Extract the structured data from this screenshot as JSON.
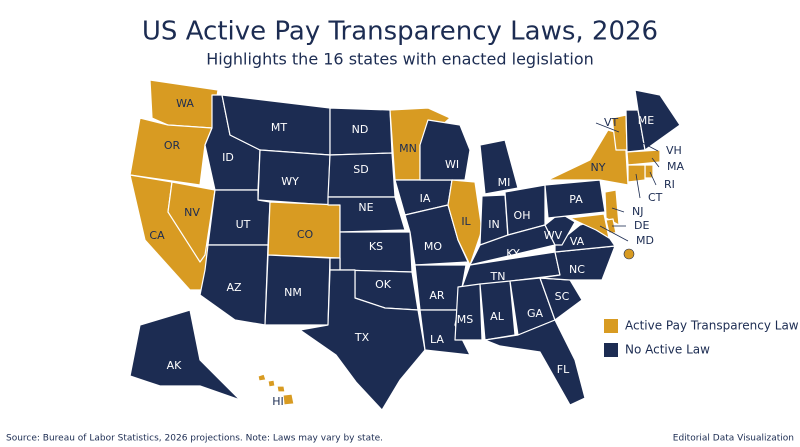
{
  "title": "US Active Pay Transparency Laws, 2026",
  "subtitle": "Highlights the 16 states with enacted legislation",
  "legend": [
    {
      "label": "Active Pay Transparency Law",
      "color": "#d89b22"
    },
    {
      "label": "No Active Law",
      "color": "#1c2c52"
    }
  ],
  "states": [
    {
      "abbr": "WA",
      "active": true
    },
    {
      "abbr": "OR",
      "active": true
    },
    {
      "abbr": "CA",
      "active": true
    },
    {
      "abbr": "NV",
      "active": true
    },
    {
      "abbr": "ID",
      "active": false
    },
    {
      "abbr": "MT",
      "active": false
    },
    {
      "abbr": "WY",
      "active": false
    },
    {
      "abbr": "UT",
      "active": false
    },
    {
      "abbr": "AZ",
      "active": false
    },
    {
      "abbr": "CO",
      "active": true
    },
    {
      "abbr": "NM",
      "active": false
    },
    {
      "abbr": "ND",
      "active": false
    },
    {
      "abbr": "SD",
      "active": false
    },
    {
      "abbr": "NE",
      "active": false
    },
    {
      "abbr": "KS",
      "active": false
    },
    {
      "abbr": "OK",
      "active": false
    },
    {
      "abbr": "TX",
      "active": false
    },
    {
      "abbr": "MN",
      "active": true
    },
    {
      "abbr": "IA",
      "active": false
    },
    {
      "abbr": "MO",
      "active": false
    },
    {
      "abbr": "AR",
      "active": false
    },
    {
      "abbr": "LA",
      "active": false
    },
    {
      "abbr": "WI",
      "active": false
    },
    {
      "abbr": "IL",
      "active": true
    },
    {
      "abbr": "MI",
      "active": false
    },
    {
      "abbr": "IN",
      "active": false
    },
    {
      "abbr": "OH",
      "active": false
    },
    {
      "abbr": "KY",
      "active": false
    },
    {
      "abbr": "TN",
      "active": false
    },
    {
      "abbr": "MS",
      "active": false
    },
    {
      "abbr": "AL",
      "active": false
    },
    {
      "abbr": "GA",
      "active": false
    },
    {
      "abbr": "FL",
      "active": false
    },
    {
      "abbr": "SC",
      "active": false
    },
    {
      "abbr": "NC",
      "active": false
    },
    {
      "abbr": "VA",
      "active": false
    },
    {
      "abbr": "WV",
      "active": false
    },
    {
      "abbr": "PA",
      "active": false
    },
    {
      "abbr": "NY",
      "active": true
    },
    {
      "abbr": "VT",
      "active": true
    },
    {
      "abbr": "VH",
      "active": false
    },
    {
      "abbr": "ME",
      "active": false
    },
    {
      "abbr": "MA",
      "active": true
    },
    {
      "abbr": "RI",
      "active": true
    },
    {
      "abbr": "CT",
      "active": true
    },
    {
      "abbr": "NJ",
      "active": true
    },
    {
      "abbr": "DE",
      "active": true
    },
    {
      "abbr": "MD",
      "active": true
    },
    {
      "abbr": "AK",
      "active": false
    },
    {
      "abbr": "HI",
      "active": true
    }
  ],
  "source": "Source: Bureau of Labor Statistics, 2026 projections. Note: Laws may vary by state.",
  "credit": "Editorial Data Visualization"
}
